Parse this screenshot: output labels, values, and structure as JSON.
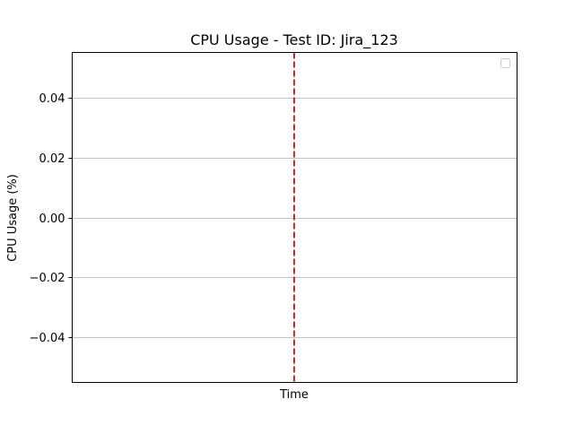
{
  "chart_data": {
    "type": "line",
    "title": "CPU Usage - Test ID: Jira_123",
    "xlabel": "Time",
    "ylabel": "CPU Usage (%)",
    "ylim": [
      -0.055,
      0.055
    ],
    "yticks": [
      0.04,
      0.02,
      0.0,
      -0.02,
      -0.04
    ],
    "ytick_labels": [
      "0.04",
      "0.02",
      "0.00",
      "−0.02",
      "−0.04"
    ],
    "series": [],
    "grid": "horizontal",
    "legend": "top-right (empty)",
    "annotations": [
      {
        "type": "vertical-line",
        "style": "dashed",
        "color": "#d62728",
        "position": "center"
      }
    ]
  }
}
